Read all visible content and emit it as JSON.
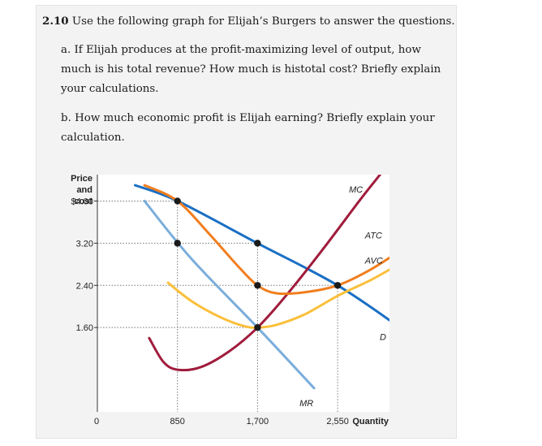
{
  "question": {
    "number": "2.10",
    "title": "Use the following graph for Elijah’s Burgers to answer the questions.",
    "part_a": "a. If Elijah produces at the profit-maximizing level of output, how much is his total revenue? How much is histotal cost? Briefly explain your calculations.",
    "part_b": "b. How much economic profit is Elijah earning? Briefly explain your calculation."
  },
  "chart_data": {
    "type": "line",
    "ylabel": [
      "Price",
      "and",
      "cost"
    ],
    "xlabel": "Quantity",
    "origin_label": "0",
    "xlim": [
      0,
      3100
    ],
    "ylim": [
      0,
      4.5
    ],
    "x_ticks": [
      {
        "value": 850,
        "label": "850"
      },
      {
        "value": 1700,
        "label": "1,700"
      },
      {
        "value": 2550,
        "label": "2,550"
      }
    ],
    "y_ticks": [
      {
        "value": 4.0,
        "label": "$4.00"
      },
      {
        "value": 3.2,
        "label": "3.20"
      },
      {
        "value": 2.4,
        "label": "2.40"
      },
      {
        "value": 1.6,
        "label": "1.60"
      }
    ],
    "series": [
      {
        "name": "MR",
        "color": "#7aaddb",
        "points": [
          [
            500,
            4.0
          ],
          [
            1000,
            2.9
          ],
          [
            1700,
            1.6
          ],
          [
            2300,
            0.45
          ]
        ]
      },
      {
        "name": "D",
        "color": "#1a6fc4",
        "points": [
          [
            400,
            4.3
          ],
          [
            850,
            4.0
          ],
          [
            1700,
            3.2
          ],
          [
            2550,
            2.4
          ],
          [
            3250,
            1.55
          ]
        ]
      },
      {
        "name": "MC",
        "color": "#a01c3c",
        "points": [
          [
            550,
            1.4
          ],
          [
            700,
            0.95
          ],
          [
            850,
            0.8
          ],
          [
            1100,
            0.85
          ],
          [
            1400,
            1.15
          ],
          [
            1700,
            1.6
          ],
          [
            2000,
            2.2
          ],
          [
            2400,
            3.1
          ],
          [
            2800,
            4.05
          ],
          [
            3000,
            4.5
          ]
        ]
      },
      {
        "name": "ATC",
        "color": "#f07e1e",
        "points": [
          [
            500,
            4.3
          ],
          [
            850,
            4.0
          ],
          [
            1200,
            3.35
          ],
          [
            1500,
            2.75
          ],
          [
            1700,
            2.4
          ],
          [
            1900,
            2.25
          ],
          [
            2200,
            2.27
          ],
          [
            2550,
            2.4
          ],
          [
            2900,
            2.7
          ],
          [
            3250,
            3.1
          ]
        ]
      },
      {
        "name": "AVC",
        "color": "#fbbf3a",
        "points": [
          [
            750,
            2.45
          ],
          [
            1000,
            2.1
          ],
          [
            1300,
            1.8
          ],
          [
            1550,
            1.63
          ],
          [
            1700,
            1.6
          ],
          [
            1900,
            1.65
          ],
          [
            2200,
            1.85
          ],
          [
            2550,
            2.2
          ],
          [
            2900,
            2.5
          ],
          [
            3150,
            2.75
          ]
        ]
      }
    ],
    "dots": [
      {
        "x": 850,
        "y": 4.0
      },
      {
        "x": 850,
        "y": 3.2
      },
      {
        "x": 1700,
        "y": 3.2
      },
      {
        "x": 1700,
        "y": 2.4
      },
      {
        "x": 1700,
        "y": 1.6
      },
      {
        "x": 2550,
        "y": 2.4
      }
    ],
    "guides": {
      "horizontal": [
        {
          "y": 4.0,
          "x_to": 850
        },
        {
          "y": 3.2,
          "x_to": 1700
        },
        {
          "y": 2.4,
          "x_to": 2550
        },
        {
          "y": 1.6,
          "x_to": 1700
        }
      ],
      "vertical": [
        {
          "x": 850,
          "y_from": 4.0
        },
        {
          "x": 1700,
          "y_from": 3.2
        },
        {
          "x": 2550,
          "y_from": 2.4
        }
      ]
    },
    "grid": false,
    "legend": "curve labels beside each line"
  }
}
